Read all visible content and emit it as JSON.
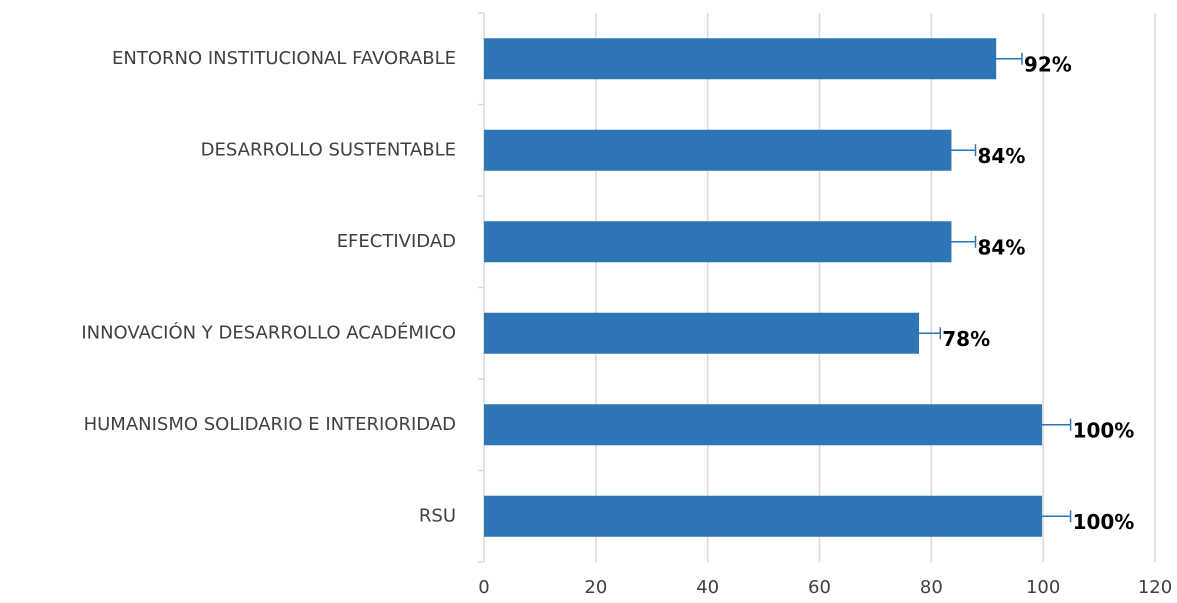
{
  "chart_data": {
    "type": "bar",
    "orientation": "horizontal",
    "categories": [
      "ENTORNO INSTITUCIONAL FAVORABLE",
      "DESARROLLO SUSTENTABLE",
      "EFECTIVIDAD",
      "INNOVACIÓN Y DESARROLLO ACADÉMICO",
      "HUMANISMO SOLIDARIO E INTERIORIDAD",
      "RSU"
    ],
    "values": [
      91.6,
      83.6,
      83.6,
      77.8,
      99.8,
      99.8
    ],
    "value_labels": [
      "92%",
      "84%",
      "84%",
      "78%",
      "100%",
      "100%"
    ],
    "errors": [
      4.6,
      4.3,
      4.3,
      3.8,
      5.1,
      5.1
    ],
    "color": "#2e75b6",
    "error_color": "#2e75b6",
    "xlim": [
      0,
      120
    ],
    "xticks": [
      0,
      20,
      40,
      60,
      80,
      100,
      120
    ],
    "grid": true
  }
}
